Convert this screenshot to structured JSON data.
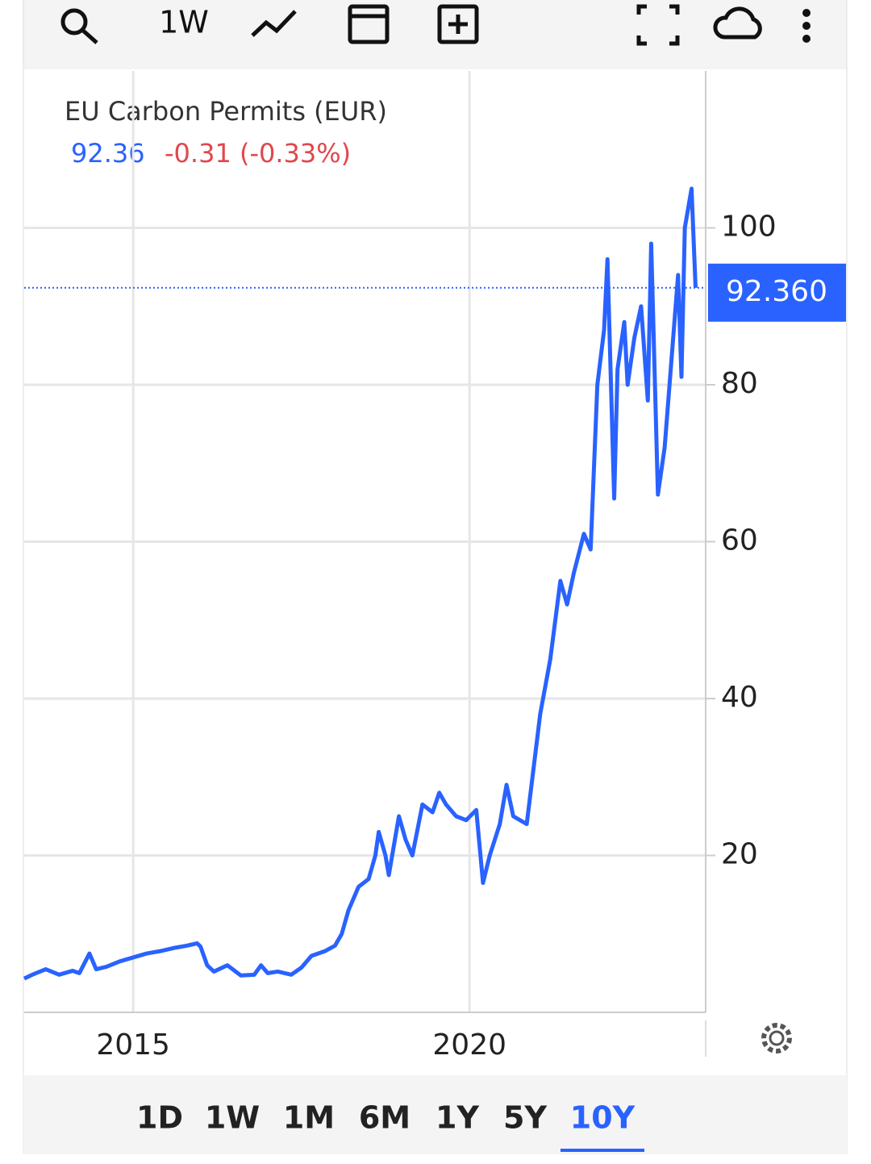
{
  "toolbar": {
    "interval": "1W"
  },
  "chart_data": {
    "type": "line",
    "title": "EU Carbon Permits (EUR)",
    "last_value": "92.36",
    "change": "-0.31 (-0.33%)",
    "price_line": 92.36,
    "price_label": "92.360",
    "color": "#2962ff",
    "grid": true,
    "x": [
      2013.38,
      2013.5,
      2013.7,
      2013.9,
      2014.1,
      2014.2,
      2014.35,
      2014.45,
      2014.6,
      2014.8,
      2015.0,
      2015.2,
      2015.4,
      2015.6,
      2015.8,
      2015.95,
      2016.0,
      2016.1,
      2016.2,
      2016.4,
      2016.6,
      2016.8,
      2016.9,
      2017.0,
      2017.15,
      2017.35,
      2017.5,
      2017.65,
      2017.85,
      2018.0,
      2018.1,
      2018.2,
      2018.35,
      2018.5,
      2018.6,
      2018.65,
      2018.75,
      2018.8,
      2018.95,
      2019.05,
      2019.15,
      2019.3,
      2019.45,
      2019.55,
      2019.65,
      2019.8,
      2019.95,
      2020.1,
      2020.2,
      2020.3,
      2020.45,
      2020.55,
      2020.65,
      2020.85,
      2020.95,
      2021.05,
      2021.2,
      2021.35,
      2021.45,
      2021.55,
      2021.7,
      2021.8,
      2021.9,
      2022.0,
      2022.05,
      2022.15,
      2022.2,
      2022.3,
      2022.35,
      2022.45,
      2022.55,
      2022.65,
      2022.7,
      2022.8,
      2022.9,
      2023.0,
      2023.1,
      2023.15,
      2023.2,
      2023.3,
      2023.36
    ],
    "values": [
      4.3,
      4.8,
      5.5,
      4.8,
      5.3,
      5.0,
      7.5,
      5.5,
      5.8,
      6.5,
      7.0,
      7.5,
      7.8,
      8.2,
      8.5,
      8.8,
      8.4,
      6.0,
      5.2,
      6.0,
      4.7,
      4.8,
      6.0,
      5.0,
      5.2,
      4.8,
      5.7,
      7.2,
      7.8,
      8.5,
      10,
      13,
      16,
      17,
      20,
      23,
      20,
      17.5,
      25,
      22,
      20,
      26.5,
      25.5,
      28,
      26.5,
      25,
      24.5,
      25.8,
      16.5,
      20,
      24,
      29,
      25,
      24,
      31,
      38,
      45,
      55,
      52,
      56,
      61,
      59,
      80,
      87,
      96,
      65.5,
      82,
      88,
      80,
      86,
      90,
      78,
      98,
      66,
      72,
      83,
      94,
      81,
      100,
      105,
      92.36
    ],
    "xlim": [
      2013.38,
      2023.51
    ],
    "xticks": [
      2015,
      2020
    ],
    "ylim": [
      0,
      120
    ],
    "yticks": [
      20,
      40,
      60,
      80,
      100
    ]
  },
  "ranges": [
    "1D",
    "1W",
    "1M",
    "6M",
    "1Y",
    "5Y",
    "10Y"
  ],
  "active_range": 6
}
